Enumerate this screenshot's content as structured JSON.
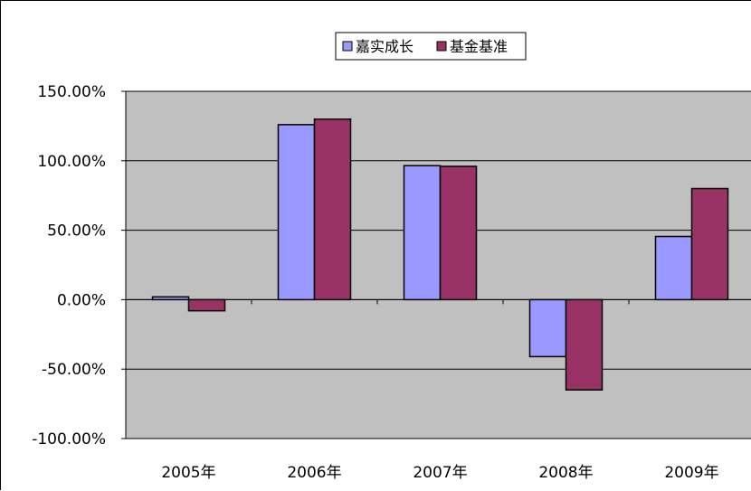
{
  "chart_data": {
    "type": "bar",
    "categories": [
      "2005年",
      "2006年",
      "2007年",
      "2008年",
      "2009年"
    ],
    "series": [
      {
        "name": "嘉实成长",
        "values": [
          2.0,
          126.0,
          96.5,
          -41.0,
          45.5
        ]
      },
      {
        "name": "基金基准",
        "values": [
          -8.0,
          130.0,
          96.0,
          -65.0,
          80.0
        ]
      }
    ],
    "ylim": [
      -100,
      150
    ],
    "yticks": [
      150,
      100,
      50,
      0,
      -50,
      -100
    ],
    "ytick_labels": [
      "150.00%",
      "100.00%",
      "50.00%",
      "0.00%",
      "-50.00%",
      "-100.00%"
    ],
    "grid": true,
    "legend_position": "top-center",
    "colors": {
      "series": [
        "#9999FF",
        "#993366"
      ],
      "plot_background": "#C0C0C0",
      "gridline": "#000000"
    }
  }
}
